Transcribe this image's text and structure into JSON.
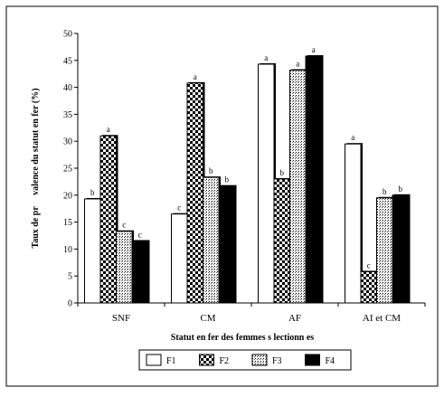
{
  "chart_data": {
    "type": "bar",
    "title": "",
    "xlabel": "Statut en fer des femmes s lectionn es",
    "ylabel": "Taux de pr     valence du statut en fer (%)",
    "ylim": [
      0,
      50
    ],
    "yticks": [
      0,
      5,
      10,
      15,
      20,
      25,
      30,
      35,
      40,
      45,
      50
    ],
    "grid": false,
    "legend_position": "bottom",
    "categories": [
      "SNF",
      "CM",
      "AF",
      "AI et CM"
    ],
    "series": [
      {
        "name": "F1",
        "pattern": "white",
        "values": [
          19.3,
          16.5,
          44.3,
          29.5
        ],
        "labels": [
          "b",
          "c",
          "a",
          "a"
        ]
      },
      {
        "name": "F2",
        "pattern": "checker",
        "values": [
          31.0,
          40.8,
          23.0,
          5.8
        ],
        "labels": [
          "a",
          "a",
          "b",
          "c"
        ]
      },
      {
        "name": "F3",
        "pattern": "dots",
        "values": [
          13.3,
          23.3,
          43.2,
          19.5
        ],
        "labels": [
          "c",
          "b",
          "a",
          "b"
        ]
      },
      {
        "name": "F4",
        "pattern": "black",
        "values": [
          11.5,
          21.7,
          45.8,
          20.0
        ],
        "labels": [
          "c",
          "b",
          "a",
          "b"
        ]
      }
    ]
  }
}
